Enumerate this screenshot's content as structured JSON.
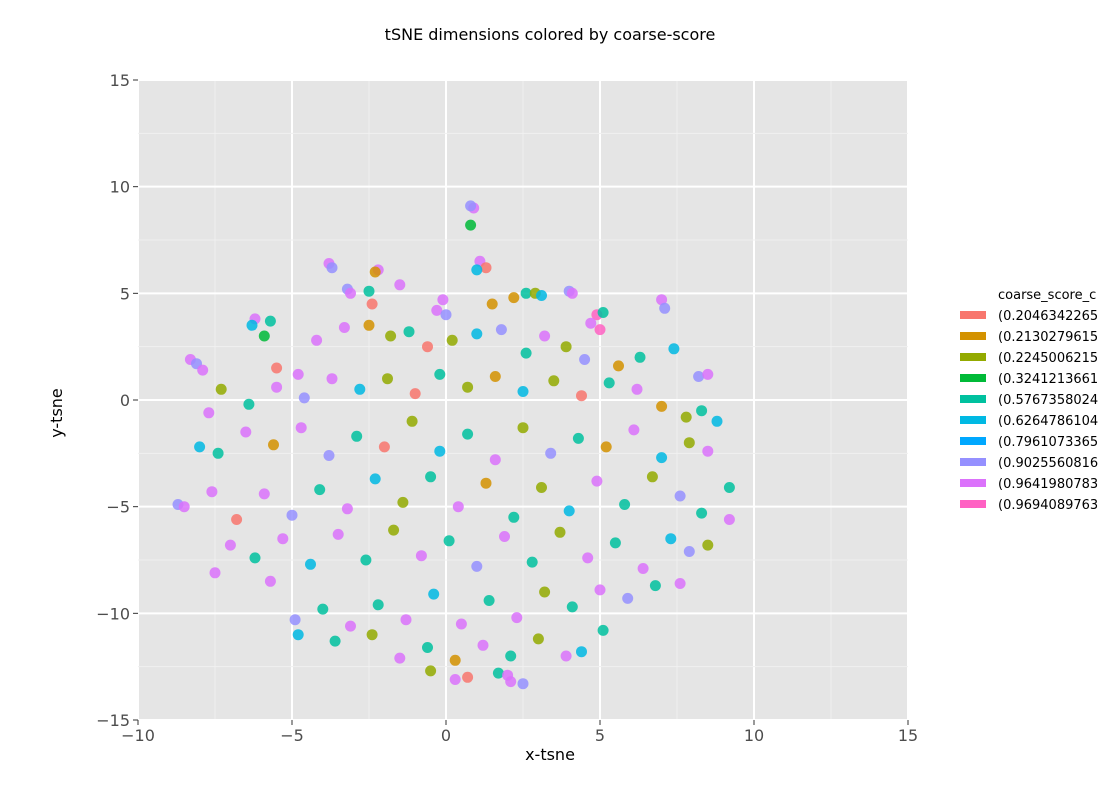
{
  "chart_data": {
    "type": "scatter",
    "title": "tSNE dimensions colored by coarse-score",
    "xlabel": "x-tsne",
    "ylabel": "y-tsne",
    "xlim": [
      -10,
      15
    ],
    "ylim": [
      -15,
      15
    ],
    "x_ticks": [
      -10,
      -5,
      0,
      5,
      10,
      15
    ],
    "y_ticks": [
      -15,
      -10,
      -5,
      0,
      5,
      10,
      15
    ],
    "x_tick_labels": [
      "−10",
      "−5",
      "0",
      "5",
      "10",
      "15"
    ],
    "y_tick_labels": [
      "−15",
      "−10",
      "−5",
      "0",
      "5",
      "10",
      "15"
    ],
    "grid": true,
    "legend": {
      "title": "coarse_score_c",
      "position": "right"
    },
    "series": [
      {
        "name": "(0.2046342265",
        "color": "#f8766d"
      },
      {
        "name": "(0.2130279615",
        "color": "#d39200"
      },
      {
        "name": "(0.2245006215",
        "color": "#93aa00"
      },
      {
        "name": "(0.3241213661",
        "color": "#00ba38"
      },
      {
        "name": "(0.5767358024",
        "color": "#00c19f"
      },
      {
        "name": "(0.6264786104",
        "color": "#00b9e3"
      },
      {
        "name": "(0.7961073365",
        "color": "#00a8ff"
      },
      {
        "name": "(0.9025560816",
        "color": "#9590ff"
      },
      {
        "name": "(0.9641980783",
        "color": "#db72fb"
      },
      {
        "name": "(0.9694089763",
        "color": "#ff61c3"
      }
    ],
    "points": [
      {
        "x": 0.9,
        "y": 9.0,
        "series": 8
      },
      {
        "x": 0.8,
        "y": 9.1,
        "series": 7
      },
      {
        "x": 0.8,
        "y": 8.2,
        "series": 3
      },
      {
        "x": 1.1,
        "y": 6.5,
        "series": 8
      },
      {
        "x": 1.3,
        "y": 6.2,
        "series": 0
      },
      {
        "x": 1.0,
        "y": 6.1,
        "series": 5
      },
      {
        "x": -3.8,
        "y": 6.4,
        "series": 8
      },
      {
        "x": -3.7,
        "y": 6.2,
        "series": 7
      },
      {
        "x": -2.2,
        "y": 6.1,
        "series": 8
      },
      {
        "x": -2.3,
        "y": 6.0,
        "series": 1
      },
      {
        "x": -1.5,
        "y": 5.4,
        "series": 8
      },
      {
        "x": -3.2,
        "y": 5.2,
        "series": 7
      },
      {
        "x": -3.1,
        "y": 5.0,
        "series": 8
      },
      {
        "x": -2.4,
        "y": 4.5,
        "series": 0
      },
      {
        "x": -2.5,
        "y": 5.1,
        "series": 4
      },
      {
        "x": -0.1,
        "y": 4.7,
        "series": 8
      },
      {
        "x": -0.3,
        "y": 4.2,
        "series": 8
      },
      {
        "x": 0.0,
        "y": 4.0,
        "series": 7
      },
      {
        "x": 1.5,
        "y": 4.5,
        "series": 1
      },
      {
        "x": 2.2,
        "y": 4.8,
        "series": 1
      },
      {
        "x": 2.6,
        "y": 5.0,
        "series": 4
      },
      {
        "x": 2.9,
        "y": 5.0,
        "series": 2
      },
      {
        "x": 3.1,
        "y": 4.9,
        "series": 5
      },
      {
        "x": 4.0,
        "y": 5.1,
        "series": 7
      },
      {
        "x": 4.1,
        "y": 5.0,
        "series": 8
      },
      {
        "x": 4.9,
        "y": 4.0,
        "series": 9
      },
      {
        "x": 5.1,
        "y": 4.1,
        "series": 4
      },
      {
        "x": 4.7,
        "y": 3.6,
        "series": 8
      },
      {
        "x": 5.0,
        "y": 3.3,
        "series": 9
      },
      {
        "x": 7.0,
        "y": 4.7,
        "series": 8
      },
      {
        "x": 7.1,
        "y": 4.3,
        "series": 7
      },
      {
        "x": 7.4,
        "y": 2.4,
        "series": 5
      },
      {
        "x": -6.2,
        "y": 3.8,
        "series": 8
      },
      {
        "x": -6.3,
        "y": 3.5,
        "series": 5
      },
      {
        "x": -5.7,
        "y": 3.7,
        "series": 4
      },
      {
        "x": -5.9,
        "y": 3.0,
        "series": 3
      },
      {
        "x": -8.3,
        "y": 1.9,
        "series": 8
      },
      {
        "x": -8.1,
        "y": 1.7,
        "series": 7
      },
      {
        "x": -7.9,
        "y": 1.4,
        "series": 8
      },
      {
        "x": -5.5,
        "y": 1.5,
        "series": 0
      },
      {
        "x": -4.8,
        "y": 1.2,
        "series": 8
      },
      {
        "x": -4.2,
        "y": 2.8,
        "series": 8
      },
      {
        "x": -3.3,
        "y": 3.4,
        "series": 8
      },
      {
        "x": -2.5,
        "y": 3.5,
        "series": 1
      },
      {
        "x": -1.8,
        "y": 3.0,
        "series": 2
      },
      {
        "x": -1.2,
        "y": 3.2,
        "series": 4
      },
      {
        "x": -0.6,
        "y": 2.5,
        "series": 0
      },
      {
        "x": 0.2,
        "y": 2.8,
        "series": 2
      },
      {
        "x": 1.0,
        "y": 3.1,
        "series": 5
      },
      {
        "x": 1.8,
        "y": 3.3,
        "series": 7
      },
      {
        "x": 2.6,
        "y": 2.2,
        "series": 4
      },
      {
        "x": 3.2,
        "y": 3.0,
        "series": 8
      },
      {
        "x": 3.9,
        "y": 2.5,
        "series": 2
      },
      {
        "x": 4.5,
        "y": 1.9,
        "series": 7
      },
      {
        "x": 5.6,
        "y": 1.6,
        "series": 1
      },
      {
        "x": 6.3,
        "y": 2.0,
        "series": 4
      },
      {
        "x": 8.2,
        "y": 1.1,
        "series": 7
      },
      {
        "x": 8.5,
        "y": 1.2,
        "series": 8
      },
      {
        "x": 8.3,
        "y": -0.5,
        "series": 4
      },
      {
        "x": 8.8,
        "y": -1.0,
        "series": 5
      },
      {
        "x": 7.8,
        "y": -0.8,
        "series": 2
      },
      {
        "x": 7.0,
        "y": -0.3,
        "series": 1
      },
      {
        "x": 6.2,
        "y": 0.5,
        "series": 8
      },
      {
        "x": 5.3,
        "y": 0.8,
        "series": 4
      },
      {
        "x": 4.4,
        "y": 0.2,
        "series": 0
      },
      {
        "x": 3.5,
        "y": 0.9,
        "series": 2
      },
      {
        "x": 2.5,
        "y": 0.4,
        "series": 5
      },
      {
        "x": 1.6,
        "y": 1.1,
        "series": 1
      },
      {
        "x": 0.7,
        "y": 0.6,
        "series": 2
      },
      {
        "x": -0.2,
        "y": 1.2,
        "series": 4
      },
      {
        "x": -1.0,
        "y": 0.3,
        "series": 0
      },
      {
        "x": -1.9,
        "y": 1.0,
        "series": 2
      },
      {
        "x": -2.8,
        "y": 0.5,
        "series": 5
      },
      {
        "x": -3.7,
        "y": 1.0,
        "series": 8
      },
      {
        "x": -4.6,
        "y": 0.1,
        "series": 7
      },
      {
        "x": -5.5,
        "y": 0.6,
        "series": 8
      },
      {
        "x": -6.4,
        "y": -0.2,
        "series": 4
      },
      {
        "x": -7.3,
        "y": 0.5,
        "series": 2
      },
      {
        "x": -7.7,
        "y": -0.6,
        "series": 8
      },
      {
        "x": -8.0,
        "y": -2.2,
        "series": 5
      },
      {
        "x": -7.4,
        "y": -2.5,
        "series": 4
      },
      {
        "x": -6.5,
        "y": -1.5,
        "series": 8
      },
      {
        "x": -5.6,
        "y": -2.1,
        "series": 1
      },
      {
        "x": -4.7,
        "y": -1.3,
        "series": 8
      },
      {
        "x": -3.8,
        "y": -2.6,
        "series": 7
      },
      {
        "x": -2.9,
        "y": -1.7,
        "series": 4
      },
      {
        "x": -2.0,
        "y": -2.2,
        "series": 0
      },
      {
        "x": -1.1,
        "y": -1.0,
        "series": 2
      },
      {
        "x": -0.2,
        "y": -2.4,
        "series": 5
      },
      {
        "x": 0.7,
        "y": -1.6,
        "series": 4
      },
      {
        "x": 1.6,
        "y": -2.8,
        "series": 8
      },
      {
        "x": 2.5,
        "y": -1.3,
        "series": 2
      },
      {
        "x": 3.4,
        "y": -2.5,
        "series": 7
      },
      {
        "x": 4.3,
        "y": -1.8,
        "series": 4
      },
      {
        "x": 5.2,
        "y": -2.2,
        "series": 1
      },
      {
        "x": 6.1,
        "y": -1.4,
        "series": 8
      },
      {
        "x": 7.0,
        "y": -2.7,
        "series": 5
      },
      {
        "x": 7.9,
        "y": -2.0,
        "series": 2
      },
      {
        "x": 8.5,
        "y": -2.4,
        "series": 8
      },
      {
        "x": 9.2,
        "y": -4.1,
        "series": 4
      },
      {
        "x": 9.2,
        "y": -5.6,
        "series": 8
      },
      {
        "x": 8.3,
        "y": -5.3,
        "series": 4
      },
      {
        "x": 7.6,
        "y": -4.5,
        "series": 7
      },
      {
        "x": 6.7,
        "y": -3.6,
        "series": 2
      },
      {
        "x": 5.8,
        "y": -4.9,
        "series": 4
      },
      {
        "x": 4.9,
        "y": -3.8,
        "series": 8
      },
      {
        "x": 4.0,
        "y": -5.2,
        "series": 5
      },
      {
        "x": 3.1,
        "y": -4.1,
        "series": 2
      },
      {
        "x": 2.2,
        "y": -5.5,
        "series": 4
      },
      {
        "x": 1.3,
        "y": -3.9,
        "series": 1
      },
      {
        "x": 0.4,
        "y": -5.0,
        "series": 8
      },
      {
        "x": -0.5,
        "y": -3.6,
        "series": 4
      },
      {
        "x": -1.4,
        "y": -4.8,
        "series": 2
      },
      {
        "x": -2.3,
        "y": -3.7,
        "series": 5
      },
      {
        "x": -3.2,
        "y": -5.1,
        "series": 8
      },
      {
        "x": -4.1,
        "y": -4.2,
        "series": 4
      },
      {
        "x": -5.0,
        "y": -5.4,
        "series": 7
      },
      {
        "x": -5.9,
        "y": -4.4,
        "series": 8
      },
      {
        "x": -6.8,
        "y": -5.6,
        "series": 0
      },
      {
        "x": -7.6,
        "y": -4.3,
        "series": 8
      },
      {
        "x": -8.7,
        "y": -4.9,
        "series": 7
      },
      {
        "x": -8.5,
        "y": -5.0,
        "series": 8
      },
      {
        "x": -7.5,
        "y": -8.1,
        "series": 8
      },
      {
        "x": -7.0,
        "y": -6.8,
        "series": 8
      },
      {
        "x": -6.2,
        "y": -7.4,
        "series": 4
      },
      {
        "x": -5.3,
        "y": -6.5,
        "series": 8
      },
      {
        "x": -4.4,
        "y": -7.7,
        "series": 5
      },
      {
        "x": -3.5,
        "y": -6.3,
        "series": 8
      },
      {
        "x": -2.6,
        "y": -7.5,
        "series": 4
      },
      {
        "x": -1.7,
        "y": -6.1,
        "series": 2
      },
      {
        "x": -0.8,
        "y": -7.3,
        "series": 8
      },
      {
        "x": 0.1,
        "y": -6.6,
        "series": 4
      },
      {
        "x": 1.0,
        "y": -7.8,
        "series": 7
      },
      {
        "x": 1.9,
        "y": -6.4,
        "series": 8
      },
      {
        "x": 2.8,
        "y": -7.6,
        "series": 4
      },
      {
        "x": 3.7,
        "y": -6.2,
        "series": 2
      },
      {
        "x": 4.6,
        "y": -7.4,
        "series": 8
      },
      {
        "x": 5.5,
        "y": -6.7,
        "series": 4
      },
      {
        "x": 6.4,
        "y": -7.9,
        "series": 8
      },
      {
        "x": 7.3,
        "y": -6.5,
        "series": 5
      },
      {
        "x": 7.9,
        "y": -7.1,
        "series": 7
      },
      {
        "x": 8.5,
        "y": -6.8,
        "series": 2
      },
      {
        "x": 7.6,
        "y": -8.6,
        "series": 8
      },
      {
        "x": 6.8,
        "y": -8.7,
        "series": 4
      },
      {
        "x": 5.9,
        "y": -9.3,
        "series": 7
      },
      {
        "x": 5.0,
        "y": -8.9,
        "series": 8
      },
      {
        "x": 4.1,
        "y": -9.7,
        "series": 4
      },
      {
        "x": 3.2,
        "y": -9.0,
        "series": 2
      },
      {
        "x": 2.3,
        "y": -10.2,
        "series": 8
      },
      {
        "x": 1.4,
        "y": -9.4,
        "series": 4
      },
      {
        "x": 0.5,
        "y": -10.5,
        "series": 8
      },
      {
        "x": -0.4,
        "y": -9.1,
        "series": 5
      },
      {
        "x": -1.3,
        "y": -10.3,
        "series": 8
      },
      {
        "x": -2.2,
        "y": -9.6,
        "series": 4
      },
      {
        "x": -3.1,
        "y": -10.6,
        "series": 8
      },
      {
        "x": -4.0,
        "y": -9.8,
        "series": 4
      },
      {
        "x": -4.9,
        "y": -10.3,
        "series": 7
      },
      {
        "x": -5.7,
        "y": -8.5,
        "series": 8
      },
      {
        "x": -4.8,
        "y": -11.0,
        "series": 5
      },
      {
        "x": -3.6,
        "y": -11.3,
        "series": 4
      },
      {
        "x": -2.4,
        "y": -11.0,
        "series": 2
      },
      {
        "x": -1.5,
        "y": -12.1,
        "series": 8
      },
      {
        "x": -0.6,
        "y": -11.6,
        "series": 4
      },
      {
        "x": 0.3,
        "y": -12.2,
        "series": 1
      },
      {
        "x": 1.2,
        "y": -11.5,
        "series": 8
      },
      {
        "x": 2.1,
        "y": -12.0,
        "series": 4
      },
      {
        "x": 3.0,
        "y": -11.2,
        "series": 2
      },
      {
        "x": 3.9,
        "y": -12.0,
        "series": 8
      },
      {
        "x": 4.4,
        "y": -11.8,
        "series": 5
      },
      {
        "x": 5.1,
        "y": -10.8,
        "series": 4
      },
      {
        "x": -0.5,
        "y": -12.7,
        "series": 2
      },
      {
        "x": 0.3,
        "y": -13.1,
        "series": 8
      },
      {
        "x": 0.7,
        "y": -13.0,
        "series": 0
      },
      {
        "x": 1.7,
        "y": -12.8,
        "series": 4
      },
      {
        "x": 2.1,
        "y": -13.2,
        "series": 8
      },
      {
        "x": 2.5,
        "y": -13.3,
        "series": 7
      },
      {
        "x": 2.0,
        "y": -12.9,
        "series": 8
      }
    ]
  }
}
